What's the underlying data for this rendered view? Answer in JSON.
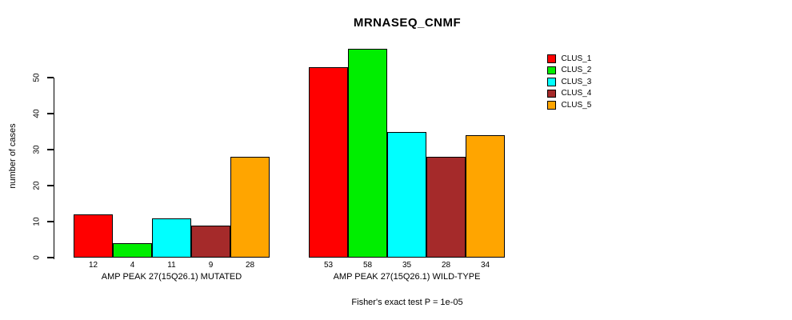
{
  "title": "MRNASEQ_CNMF",
  "ylabel": "number of cases",
  "caption": "Fisher's exact test P = 1e-05",
  "chart_data": {
    "type": "bar",
    "title": "MRNASEQ_CNMF",
    "xlabel": "",
    "ylabel": "number of cases",
    "ylim": [
      0,
      58
    ],
    "yticks": [
      0,
      10,
      20,
      30,
      40,
      50
    ],
    "grid": false,
    "legend_position": "top-right",
    "legend": [
      {
        "label": "CLUS_1",
        "color": "#FF0000"
      },
      {
        "label": "CLUS_2",
        "color": "#00EE00"
      },
      {
        "label": "CLUS_3",
        "color": "#00FFFF"
      },
      {
        "label": "CLUS_4",
        "color": "#A52A2A"
      },
      {
        "label": "CLUS_5",
        "color": "#FFA500"
      }
    ],
    "series": [
      "CLUS_1",
      "CLUS_2",
      "CLUS_3",
      "CLUS_4",
      "CLUS_5"
    ],
    "groups": [
      {
        "label": "AMP PEAK 27(15Q26.1) MUTATED",
        "values": [
          12,
          4,
          11,
          9,
          28
        ]
      },
      {
        "label": "AMP PEAK 27(15Q26.1) WILD-TYPE",
        "values": [
          53,
          58,
          35,
          28,
          34
        ]
      }
    ],
    "annotation": "Fisher's exact test P = 1e-05"
  }
}
